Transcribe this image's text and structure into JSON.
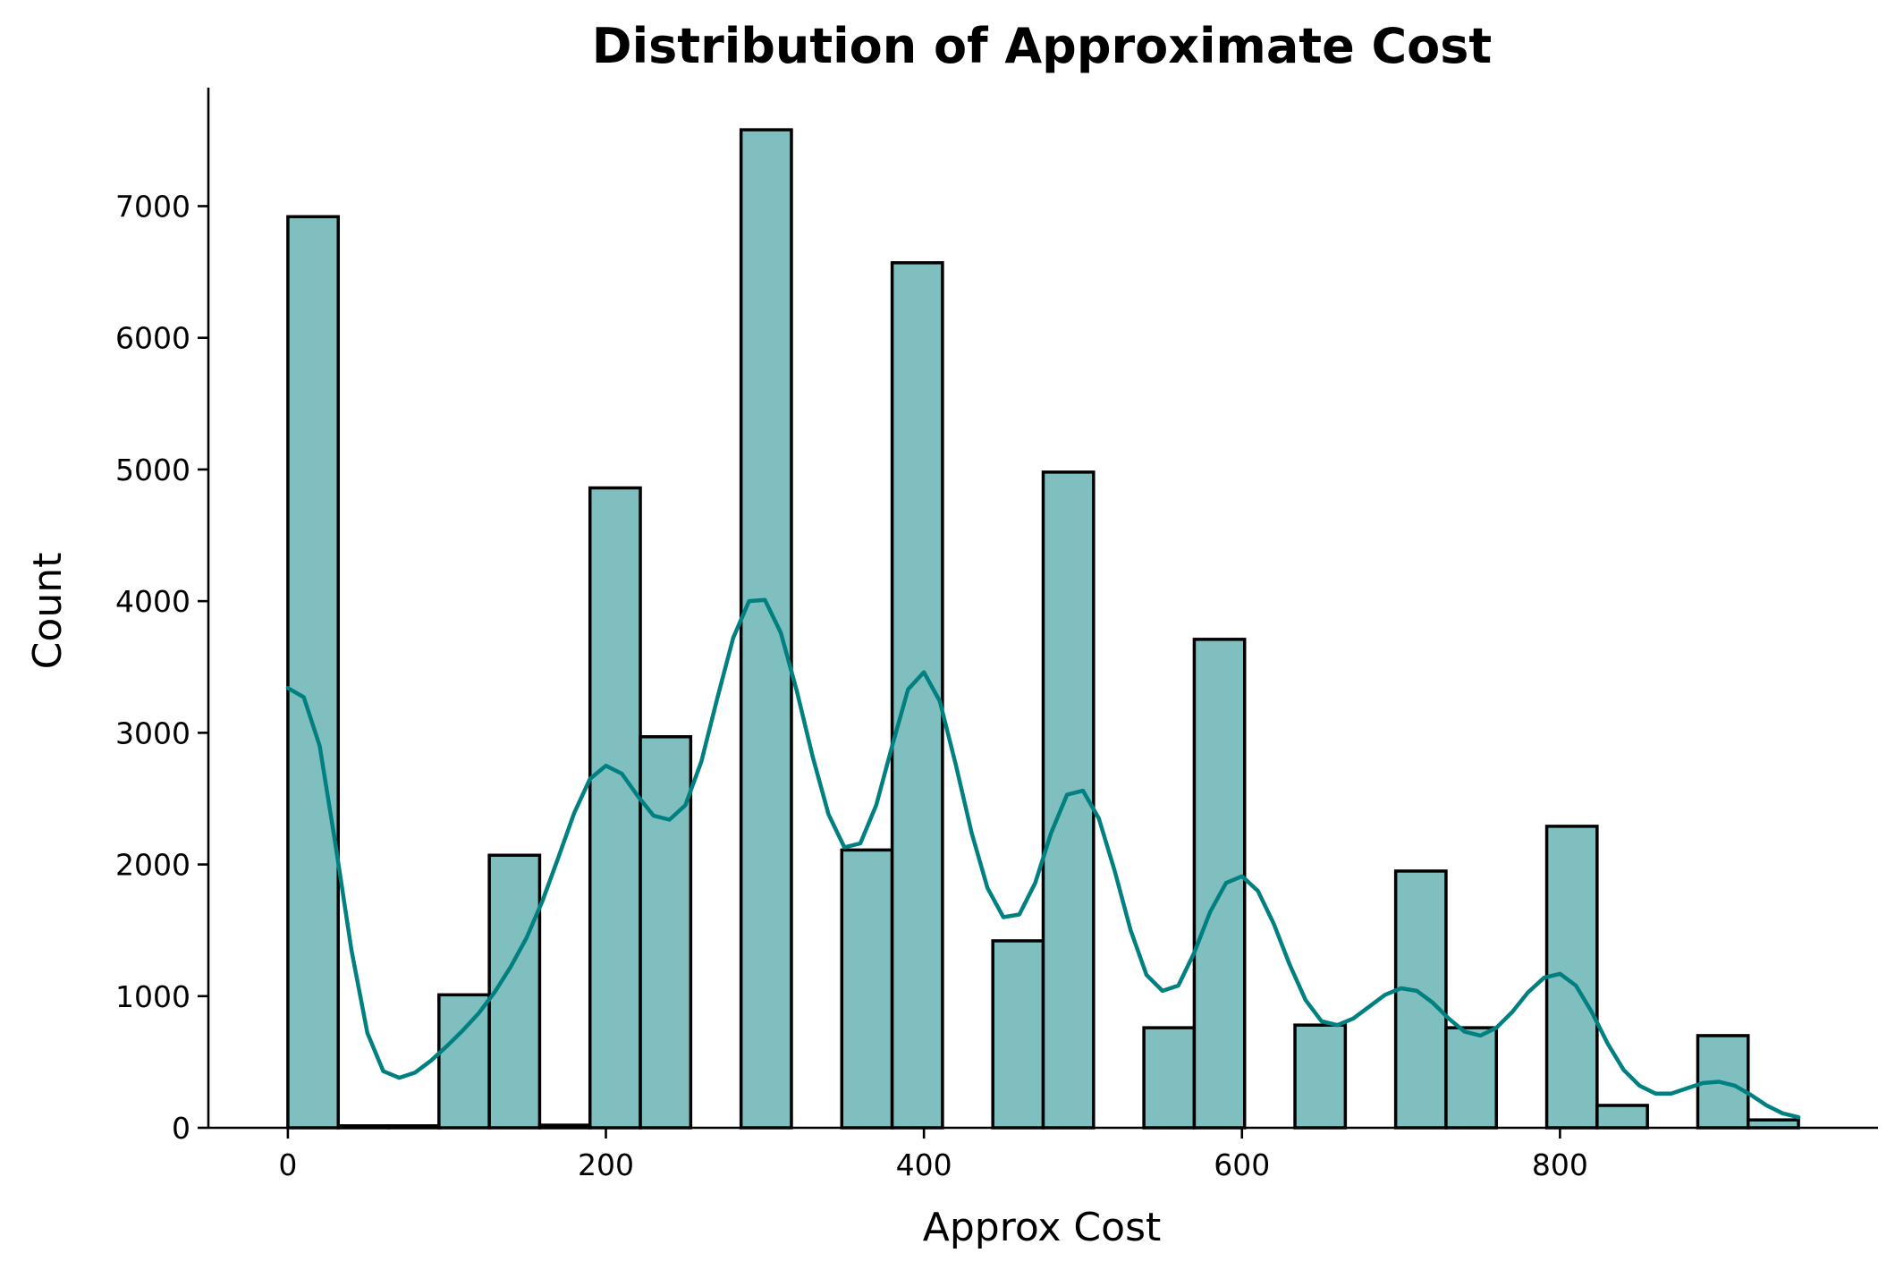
{
  "chart_data": {
    "type": "bar",
    "title": "Distribution of Approximate Cost",
    "xlabel": "Approx Cost",
    "ylabel": "Count",
    "xlim": [
      -50,
      1000
    ],
    "ylim": [
      0,
      7900
    ],
    "xticks": [
      0,
      200,
      400,
      600,
      800
    ],
    "yticks": [
      0,
      1000,
      2000,
      3000,
      4000,
      5000,
      6000,
      7000
    ],
    "bin_width": 31.67,
    "bins": [
      {
        "x0": 0.0,
        "x1": 31.67,
        "count": 6920
      },
      {
        "x0": 31.67,
        "x1": 63.33,
        "count": 15
      },
      {
        "x0": 63.33,
        "x1": 95.0,
        "count": 15
      },
      {
        "x0": 95.0,
        "x1": 126.67,
        "count": 1010
      },
      {
        "x0": 126.67,
        "x1": 158.33,
        "count": 2070
      },
      {
        "x0": 158.33,
        "x1": 190.0,
        "count": 20
      },
      {
        "x0": 190.0,
        "x1": 221.67,
        "count": 4860
      },
      {
        "x0": 221.67,
        "x1": 253.33,
        "count": 2970
      },
      {
        "x0": 253.33,
        "x1": 285.0,
        "count": 0
      },
      {
        "x0": 285.0,
        "x1": 316.67,
        "count": 7580
      },
      {
        "x0": 316.67,
        "x1": 348.33,
        "count": 0
      },
      {
        "x0": 348.33,
        "x1": 380.0,
        "count": 2110
      },
      {
        "x0": 380.0,
        "x1": 411.67,
        "count": 6570
      },
      {
        "x0": 411.67,
        "x1": 443.33,
        "count": 0
      },
      {
        "x0": 443.33,
        "x1": 475.0,
        "count": 1420
      },
      {
        "x0": 475.0,
        "x1": 506.67,
        "count": 4980
      },
      {
        "x0": 506.67,
        "x1": 538.33,
        "count": 0
      },
      {
        "x0": 538.33,
        "x1": 570.0,
        "count": 760
      },
      {
        "x0": 570.0,
        "x1": 601.67,
        "count": 3710
      },
      {
        "x0": 601.67,
        "x1": 633.33,
        "count": 0
      },
      {
        "x0": 633.33,
        "x1": 665.0,
        "count": 780
      },
      {
        "x0": 665.0,
        "x1": 696.67,
        "count": 0
      },
      {
        "x0": 696.67,
        "x1": 728.33,
        "count": 1950
      },
      {
        "x0": 728.33,
        "x1": 760.0,
        "count": 760
      },
      {
        "x0": 760.0,
        "x1": 791.67,
        "count": 0
      },
      {
        "x0": 791.67,
        "x1": 823.33,
        "count": 2290
      },
      {
        "x0": 823.33,
        "x1": 855.0,
        "count": 170
      },
      {
        "x0": 855.0,
        "x1": 886.67,
        "count": 0
      },
      {
        "x0": 886.67,
        "x1": 918.33,
        "count": 700
      },
      {
        "x0": 918.33,
        "x1": 950.0,
        "count": 60
      }
    ],
    "kde": {
      "color": "#008080",
      "points": [
        [
          0,
          3340
        ],
        [
          10,
          3270
        ],
        [
          20,
          2900
        ],
        [
          30,
          2150
        ],
        [
          40,
          1350
        ],
        [
          50,
          720
        ],
        [
          60,
          430
        ],
        [
          70,
          380
        ],
        [
          80,
          420
        ],
        [
          90,
          510
        ],
        [
          100,
          620
        ],
        [
          110,
          740
        ],
        [
          120,
          870
        ],
        [
          130,
          1030
        ],
        [
          140,
          1220
        ],
        [
          150,
          1440
        ],
        [
          160,
          1720
        ],
        [
          170,
          2050
        ],
        [
          180,
          2390
        ],
        [
          190,
          2650
        ],
        [
          200,
          2750
        ],
        [
          210,
          2690
        ],
        [
          220,
          2520
        ],
        [
          230,
          2370
        ],
        [
          240,
          2340
        ],
        [
          250,
          2450
        ],
        [
          260,
          2780
        ],
        [
          270,
          3260
        ],
        [
          280,
          3720
        ],
        [
          290,
          4000
        ],
        [
          300,
          4010
        ],
        [
          310,
          3760
        ],
        [
          320,
          3320
        ],
        [
          330,
          2820
        ],
        [
          340,
          2380
        ],
        [
          350,
          2130
        ],
        [
          360,
          2160
        ],
        [
          370,
          2450
        ],
        [
          380,
          2900
        ],
        [
          390,
          3330
        ],
        [
          400,
          3460
        ],
        [
          410,
          3240
        ],
        [
          420,
          2760
        ],
        [
          430,
          2240
        ],
        [
          440,
          1820
        ],
        [
          450,
          1600
        ],
        [
          460,
          1620
        ],
        [
          470,
          1860
        ],
        [
          480,
          2240
        ],
        [
          490,
          2530
        ],
        [
          500,
          2560
        ],
        [
          510,
          2350
        ],
        [
          520,
          1950
        ],
        [
          530,
          1500
        ],
        [
          540,
          1160
        ],
        [
          550,
          1040
        ],
        [
          560,
          1080
        ],
        [
          570,
          1330
        ],
        [
          580,
          1640
        ],
        [
          590,
          1860
        ],
        [
          600,
          1910
        ],
        [
          610,
          1800
        ],
        [
          620,
          1550
        ],
        [
          630,
          1240
        ],
        [
          640,
          970
        ],
        [
          650,
          810
        ],
        [
          660,
          780
        ],
        [
          670,
          830
        ],
        [
          680,
          920
        ],
        [
          690,
          1010
        ],
        [
          700,
          1060
        ],
        [
          710,
          1040
        ],
        [
          720,
          950
        ],
        [
          730,
          830
        ],
        [
          740,
          730
        ],
        [
          750,
          700
        ],
        [
          760,
          760
        ],
        [
          770,
          880
        ],
        [
          780,
          1030
        ],
        [
          790,
          1140
        ],
        [
          800,
          1170
        ],
        [
          810,
          1080
        ],
        [
          820,
          880
        ],
        [
          830,
          640
        ],
        [
          840,
          440
        ],
        [
          850,
          320
        ],
        [
          860,
          260
        ],
        [
          870,
          260
        ],
        [
          880,
          300
        ],
        [
          890,
          340
        ],
        [
          900,
          350
        ],
        [
          910,
          320
        ],
        [
          920,
          250
        ],
        [
          930,
          170
        ],
        [
          940,
          110
        ],
        [
          950,
          80
        ]
      ]
    },
    "grid": false,
    "bar_fill": "#80bfbf",
    "bar_edge": "#000000"
  }
}
